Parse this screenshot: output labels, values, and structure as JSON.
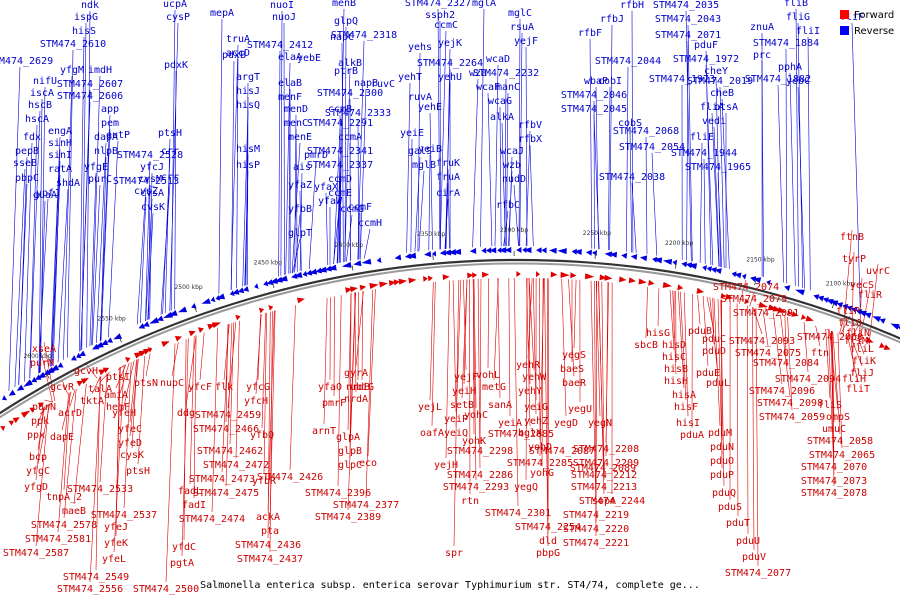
{
  "caption": "Salmonella enterica subsp. enterica serovar Typhimurium str. ST4/74, complete ge...",
  "legend": [
    {
      "label": "Forward",
      "color": "#ff0000"
    },
    {
      "label": "Reverse",
      "color": "#0000ff"
    }
  ],
  "colors": {
    "forward": "#e00000",
    "reverse": "#0000e0",
    "backbone": "#333333",
    "label_forward": "#cc0000",
    "label_reverse": "#0000cc"
  },
  "ticks": [
    {
      "label": "2650 kbp"
    },
    {
      "label": "2600 kbp"
    },
    {
      "label": "2550 kbp"
    },
    {
      "label": "2500 kbp"
    },
    {
      "label": "2450 kbp"
    },
    {
      "label": "2400 kbp"
    },
    {
      "label": "2350 kbp"
    },
    {
      "label": "2300 kbp"
    },
    {
      "label": "2250 kbp"
    },
    {
      "label": "2200 kbp"
    },
    {
      "label": "2150 kbp"
    },
    {
      "label": "2100 kbp"
    },
    {
      "label": "2050 kbp"
    },
    {
      "label": "2000 kbp"
    },
    {
      "label": "1950 kbp"
    },
    {
      "label": "1900 kbp"
    }
  ],
  "reverse_genes": [
    "ndk",
    "ispG",
    "hisS",
    "STM474_2610",
    "STM474_2629",
    "nifU",
    "iscA",
    "hscB",
    "hscA",
    "fdx",
    "pepB",
    "sseB",
    "pbpC",
    "yfgM",
    "imdH",
    "STM474_2607",
    "STM474_2606",
    "engA",
    "sinH",
    "sinI",
    "ratA",
    "shdA",
    "guaA",
    "ypfJ",
    "app",
    "pem",
    "dapA",
    "nlpB",
    "purC",
    "yfgE",
    "eutP",
    "STM474_2528",
    "yfcJ",
    "cvsM",
    "cvsA",
    "cvsK",
    "ucpA",
    "cysP",
    "pdxK",
    "ptsH",
    "crr",
    "cvsZ",
    "crr",
    "STM474_2513",
    "mepA",
    "pdxB",
    "truA",
    "accD",
    "argT",
    "hisJ",
    "hisQ",
    "hisM",
    "hisP",
    "nuoI",
    "nuoJ",
    "STM474_2412",
    "elaA",
    "elaB",
    "menF",
    "menD",
    "menC",
    "menE",
    "pmrD",
    "ais",
    "yfaZ",
    "yfaX",
    "yfbB",
    "glpT",
    "yfaW",
    "menB",
    "glpQ",
    "napC",
    "STM474_2318",
    "alkB",
    "STM474_2300",
    "napB",
    "STM474_2291",
    "ccmB",
    "STM474_2333",
    "ccmA",
    "STM474_2341",
    "STM474_2337",
    "ccmD",
    "ccmE",
    "ccmF",
    "ccmG",
    "ccmH",
    "STM474_2327",
    "ssph2",
    "ccmC",
    "yejK",
    "STM474_2264",
    "yehU",
    "yehT",
    "yehs",
    "yehE",
    "yeiE",
    "yeiB",
    "fruK",
    "fruA",
    "cirA",
    "galS",
    "mglB",
    "mglA",
    "mglC",
    "rsuA",
    "yejF",
    "wza",
    "wcaD",
    "wcaF",
    "manC",
    "STM474_2232",
    "wcaG",
    "alkA",
    "wcaJ",
    "wzb",
    "nudD",
    "rfbV",
    "rfbX",
    "rfbC",
    "rfbH",
    "rfbJ",
    "rfbF",
    "wbaP",
    "STM474_2046",
    "STM474_2045",
    "STM474_2044",
    "cobI",
    "cobS",
    "STM474_2068",
    "STM474_2054",
    "STM474_2038",
    "STM474_2035",
    "STM474_2043",
    "STM474_2071",
    "pduF",
    "STM474_1973",
    "STM474_1972",
    "STM474_2019",
    "cheB",
    "cheY",
    "fliA",
    "otsA",
    "vedi",
    "fliE",
    "STM474_1944",
    "STM474_1965",
    "fliB",
    "fliF",
    "fliG",
    "fliI",
    "STM474_1884",
    "znuA",
    "prc",
    "pphA",
    "STM474_1882",
    "yebC",
    "yebE",
    "ptrB",
    "ruvC",
    "ruvA"
  ],
  "forward_genes": [
    "xseA",
    "purM",
    "gcvR",
    "gcvH",
    "purN",
    "ppk",
    "ppx",
    "dapE",
    "bcp",
    "yfgC",
    "yfgD",
    "talA",
    "tktA",
    "acrD",
    "amiA",
    "hemF",
    "ptsI",
    "yfeH",
    "yfeC",
    "yfeD",
    "cysK",
    "ptsH",
    "ptsN",
    "nupC",
    "STM474_2533",
    "STM474_2537",
    "STM474_2578",
    "STM474_2581",
    "STM474_2587",
    "STM474_2549",
    "STM474_2556",
    "maeB",
    "tnpA_2",
    "yfeJ",
    "yfeK",
    "yfeL",
    "yfdC",
    "flk",
    "yfcF",
    "ddg",
    "STM474_2459",
    "STM474_2466",
    "STM474_2462",
    "STM474_2472",
    "STM474_2473",
    "STM474_2475",
    "STM474_2474",
    "fadL",
    "fadI",
    "STM474_2500",
    "pgtA",
    "yfcG",
    "yfcH",
    "ackA",
    "pta",
    "STM474_2436",
    "STM474_2437",
    "yfbQ",
    "yfbR",
    "STM474_2426",
    "yfaO",
    "nrdA",
    "nrdB",
    "ubiG",
    "gyrA",
    "arnT",
    "pmrF",
    "glpA",
    "glpB",
    "glpC",
    "eco",
    "STM474_2396",
    "STM474_2389",
    "STM474_2377",
    "yejF",
    "yeiH",
    "yejL",
    "yeiP",
    "yeiQ",
    "oafA",
    "yejH",
    "setB",
    "rtn",
    "STM474_2298",
    "STM474_2286",
    "STM474_2293",
    "spr",
    "sanA",
    "yeiA",
    "yohC",
    "yohK",
    "vohL",
    "metG",
    "yehR",
    "yehW",
    "yehY",
    "yeiG",
    "yehZ",
    "bglX",
    "yohD",
    "yohG",
    "dld",
    "pbpG",
    "STM474_2254",
    "STM474_2285",
    "STM474_2301",
    "yegQ",
    "yegS",
    "baeS",
    "baeR",
    "yegU",
    "yegD",
    "yegN",
    "STM474_2244",
    "STM474_2219",
    "STM474_2220",
    "STM474_2221",
    "STM474_2208",
    "STM474_2209",
    "STM474_2212",
    "STM474_2213",
    "sopA",
    "sbcB",
    "hisG",
    "hisD",
    "hisC",
    "hisB",
    "hisH",
    "hisA",
    "hisF",
    "hisI",
    "pduA",
    "pduB",
    "pduC",
    "pduD",
    "pduE",
    "pduL",
    "pduM",
    "pduN",
    "pduO",
    "pduP",
    "pduQ",
    "pduS",
    "pduT",
    "pduU",
    "pduV",
    "STM474_2077",
    "STM474_2074",
    "STM474_2079",
    "STM474_2091",
    "STM474_2093",
    "STM474_2075",
    "STM474_2084",
    "STM474_2094",
    "STM474_2096",
    "STM474_2098",
    "STM474_2059",
    "STM474_2060",
    "ftn",
    "ftnB",
    "tyrP",
    "uvrC",
    "yecS",
    "fliR",
    "fliP",
    "fliO",
    "fliN",
    "fliM",
    "fliL",
    "fliK",
    "fliJ",
    "fliH",
    "fliT",
    "fliS",
    "ompS",
    "umuC",
    "STM474_2058",
    "STM474_2065",
    "STM474_2070",
    "STM474_2073",
    "STM474_2078",
    "STM474_2085",
    "STM474_2087",
    "STM474_2089"
  ]
}
